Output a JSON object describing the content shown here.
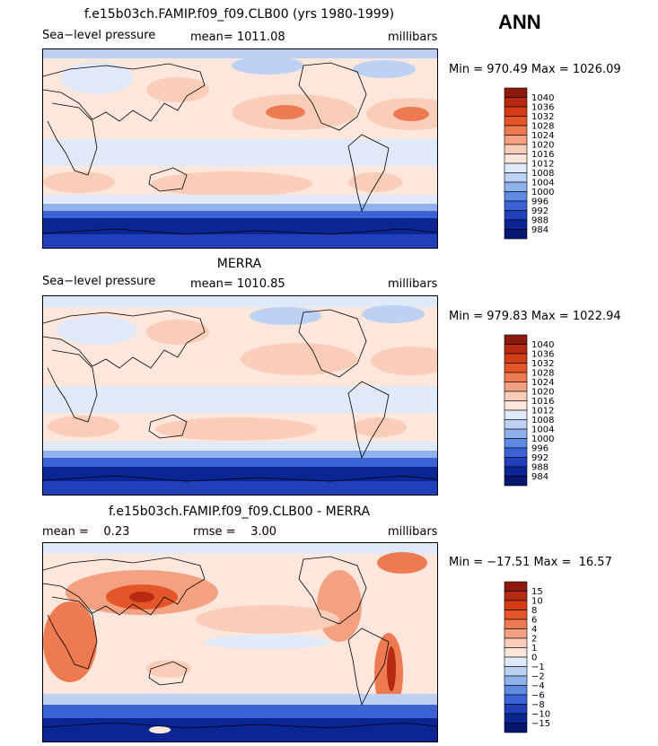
{
  "season": "ANN",
  "panels": [
    {
      "title": "f.e15b03ch.FAMIP.f09_f09.CLB00 (yrs 1980-1999)",
      "left": "Sea−level pressure",
      "center": "mean= 1011.08",
      "right": "millibars",
      "minmax": "Min = 970.49 Max = 1026.09",
      "levels": [
        "1040",
        "1036",
        "1032",
        "1028",
        "1024",
        "1020",
        "1016",
        "1012",
        "1008",
        "1004",
        "1000",
        "996",
        "992",
        "988",
        "984"
      ],
      "colors": [
        "#8c1a0c",
        "#b52a10",
        "#d43c16",
        "#e4552a",
        "#ee7a52",
        "#f4a182",
        "#f9cdb8",
        "#fde7dc",
        "#dfe9f8",
        "#bcd1f3",
        "#8fb1ec",
        "#5f8ae4",
        "#3b63d6",
        "#2040bb",
        "#0b2592",
        "#071670"
      ]
    },
    {
      "title": "MERRA",
      "left": "Sea−level pressure",
      "center": "mean= 1010.85",
      "right": "millibars",
      "minmax": "Min = 979.83 Max = 1022.94",
      "levels": [
        "1040",
        "1036",
        "1032",
        "1028",
        "1024",
        "1020",
        "1016",
        "1012",
        "1008",
        "1004",
        "1000",
        "996",
        "992",
        "988",
        "984"
      ],
      "colors": [
        "#8c1a0c",
        "#b52a10",
        "#d43c16",
        "#e4552a",
        "#ee7a52",
        "#f4a182",
        "#f9cdb8",
        "#fde7dc",
        "#dfe9f8",
        "#bcd1f3",
        "#8fb1ec",
        "#5f8ae4",
        "#3b63d6",
        "#2040bb",
        "#0b2592",
        "#071670"
      ]
    },
    {
      "title": "f.e15b03ch.FAMIP.f09_f09.CLB00 - MERRA",
      "left": "mean =    0.23",
      "center": "rmse =    3.00",
      "right": "millibars",
      "minmax": "Min = −17.51 Max =  16.57",
      "levels": [
        "15",
        "10",
        "8",
        "6",
        "4",
        "2",
        "1",
        "0",
        "−1",
        "−2",
        "−4",
        "−6",
        "−8",
        "−10",
        "−15"
      ],
      "colors": [
        "#8c1a0c",
        "#b52a10",
        "#d43c16",
        "#e4552a",
        "#ee7a52",
        "#f4a182",
        "#f9cdb8",
        "#fde7dc",
        "#dfe9f8",
        "#bcd1f3",
        "#8fb1ec",
        "#5f8ae4",
        "#3b63d6",
        "#2040bb",
        "#0b2592",
        "#071670"
      ]
    }
  ]
}
